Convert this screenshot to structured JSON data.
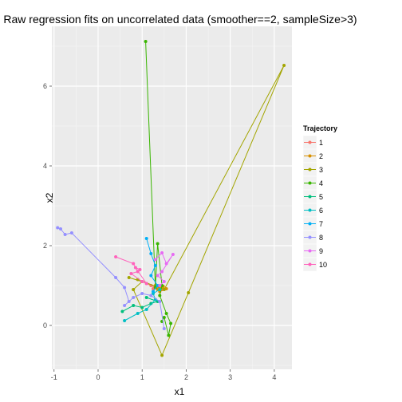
{
  "chart_data": {
    "type": "line",
    "title": "Raw regression fits on uncorrelated data (smoother==2, sampleSize>3)",
    "xlabel": "x1",
    "ylabel": "x2",
    "xlim": [
      -1.05,
      4.4
    ],
    "ylim": [
      -1.1,
      7.5
    ],
    "x_ticks": [
      -1,
      0,
      1,
      2,
      3,
      4
    ],
    "y_ticks": [
      0,
      2,
      4,
      6
    ],
    "grid": true,
    "legend": {
      "title": "Trajectory",
      "position": "right"
    },
    "series": [
      {
        "name": "1",
        "color": "#F8766D",
        "points": [
          [
            1.1,
            1.05
          ],
          [
            1.3,
            0.95
          ],
          [
            1.2,
            1.0
          ],
          [
            1.45,
            0.9
          ],
          [
            1.35,
            0.98
          ],
          [
            1.25,
            0.92
          ]
        ]
      },
      {
        "name": "2",
        "color": "#D89000",
        "points": [
          [
            1.3,
            1.0
          ],
          [
            1.45,
            0.95
          ],
          [
            1.55,
            0.92
          ],
          [
            1.4,
            0.85
          ],
          [
            1.48,
            0.98
          ],
          [
            1.35,
            0.9
          ]
        ]
      },
      {
        "name": "3",
        "color": "#A3A500",
        "points": [
          [
            0.7,
            1.2
          ],
          [
            1.0,
            1.1
          ],
          [
            0.8,
            0.9
          ],
          [
            1.45,
            -0.75
          ],
          [
            2.05,
            0.82
          ],
          [
            4.22,
            6.52
          ],
          [
            1.5,
            0.9
          ],
          [
            0.9,
            1.15
          ]
        ]
      },
      {
        "name": "4",
        "color": "#39B600",
        "points": [
          [
            1.08,
            7.12
          ],
          [
            1.3,
            0.95
          ],
          [
            1.35,
            2.05
          ],
          [
            1.45,
            1.0
          ],
          [
            1.4,
            0.75
          ],
          [
            1.55,
            0.3
          ],
          [
            1.65,
            0.05
          ],
          [
            1.6,
            -0.25
          ],
          [
            1.5,
            0.2
          ],
          [
            1.45,
            0.1
          ]
        ]
      },
      {
        "name": "5",
        "color": "#00BF7D",
        "points": [
          [
            0.55,
            0.35
          ],
          [
            0.8,
            0.5
          ],
          [
            1.0,
            0.45
          ],
          [
            1.2,
            0.55
          ],
          [
            1.35,
            0.6
          ],
          [
            1.1,
            0.7
          ]
        ]
      },
      {
        "name": "6",
        "color": "#00BFC4",
        "points": [
          [
            0.6,
            0.12
          ],
          [
            0.9,
            0.3
          ],
          [
            1.1,
            0.4
          ],
          [
            1.3,
            0.65
          ],
          [
            1.25,
            0.8
          ],
          [
            1.4,
            0.9
          ]
        ]
      },
      {
        "name": "7",
        "color": "#00B0F6",
        "points": [
          [
            1.1,
            2.18
          ],
          [
            1.2,
            1.8
          ],
          [
            1.3,
            1.5
          ],
          [
            1.2,
            1.25
          ],
          [
            1.35,
            1.0
          ],
          [
            1.25,
            0.85
          ]
        ]
      },
      {
        "name": "8",
        "color": "#9590FF",
        "points": [
          [
            -0.92,
            2.45
          ],
          [
            -0.85,
            2.42
          ],
          [
            -0.75,
            2.28
          ],
          [
            -0.6,
            2.32
          ],
          [
            0.4,
            1.2
          ],
          [
            0.6,
            0.95
          ],
          [
            0.7,
            0.6
          ],
          [
            0.6,
            0.5
          ],
          [
            0.8,
            0.7
          ],
          [
            1.0,
            0.8
          ],
          [
            1.2,
            0.75
          ],
          [
            1.4,
            0.6
          ],
          [
            1.5,
            -0.08
          ]
        ]
      },
      {
        "name": "9",
        "color": "#E76BF3",
        "points": [
          [
            1.3,
            1.65
          ],
          [
            1.45,
            1.82
          ],
          [
            1.55,
            1.55
          ],
          [
            1.7,
            1.78
          ],
          [
            1.45,
            1.35
          ],
          [
            1.35,
            1.25
          ],
          [
            1.5,
            1.1
          ],
          [
            1.4,
            1.0
          ]
        ]
      },
      {
        "name": "10",
        "color": "#FF62BC",
        "points": [
          [
            0.4,
            1.72
          ],
          [
            0.8,
            1.55
          ],
          [
            0.9,
            1.35
          ],
          [
            0.75,
            1.3
          ],
          [
            1.0,
            1.1
          ],
          [
            1.1,
            1.05
          ],
          [
            0.85,
            1.45
          ],
          [
            0.95,
            1.4
          ]
        ]
      }
    ]
  }
}
